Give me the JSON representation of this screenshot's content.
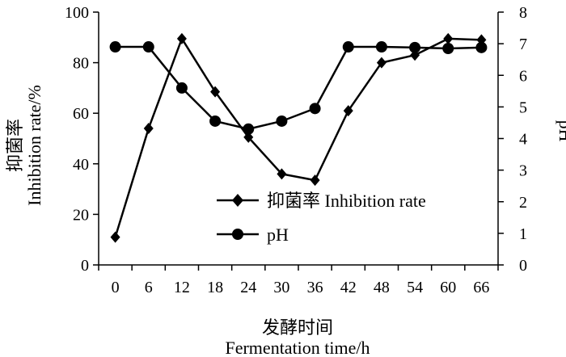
{
  "chart_data": {
    "type": "line",
    "title": "",
    "x": [
      0,
      6,
      12,
      18,
      24,
      30,
      36,
      42,
      48,
      54,
      60,
      66
    ],
    "xlabel_zh": "发酵时间",
    "xlabel_en": "Fermentation time/h",
    "ylabel_zh": "抑菌率",
    "ylabel_en": "Inhibition rate/%",
    "y2label": "pH",
    "ylim": [
      0,
      100
    ],
    "y_ticks": [
      0,
      20,
      40,
      60,
      80,
      100
    ],
    "y2lim": [
      0,
      8
    ],
    "y2_ticks": [
      0,
      1,
      2,
      3,
      4,
      5,
      6,
      7,
      8
    ],
    "legend_position": "center-right",
    "series": [
      {
        "name": "抑菌率 Inhibition rate",
        "axis": "left",
        "marker": "diamond",
        "values": [
          11,
          54,
          89.5,
          68.5,
          50.5,
          36,
          33.5,
          61,
          80,
          83,
          89.5,
          89
        ]
      },
      {
        "name": "pH",
        "axis": "right",
        "marker": "circle",
        "values": [
          6.9,
          6.9,
          5.6,
          4.55,
          4.3,
          4.55,
          4.95,
          6.9,
          6.9,
          6.88,
          6.85,
          6.88
        ]
      }
    ]
  }
}
